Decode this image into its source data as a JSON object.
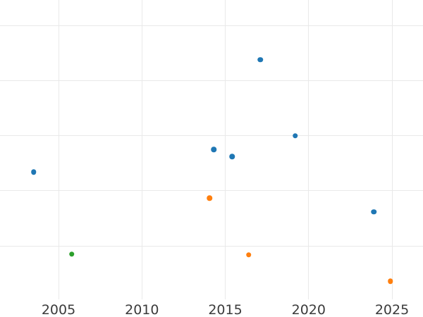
{
  "chart_data": {
    "type": "scatter",
    "title": "",
    "xlabel": "",
    "ylabel": "",
    "grid": true,
    "legend_position": "none",
    "x_tick_labels": [
      "2005",
      "2010",
      "2015",
      "2020",
      "2025"
    ],
    "x_ticks": [
      2005,
      2010,
      2015,
      2020,
      2025
    ],
    "xlim": [
      2001.49,
      2026.86
    ],
    "ylim": [
      0.03,
      5.46
    ],
    "y_gridline_values": [
      1,
      2,
      3,
      4,
      5
    ],
    "y_tick_labels": [],
    "series": [
      {
        "name": "blue-series",
        "color": "#1f77b4",
        "points": [
          {
            "x": 2003.5,
            "y": 2.34
          },
          {
            "x": 2014.3,
            "y": 2.75
          },
          {
            "x": 2015.4,
            "y": 2.62
          },
          {
            "x": 2017.1,
            "y": 4.38
          },
          {
            "x": 2019.2,
            "y": 3.0
          },
          {
            "x": 2023.9,
            "y": 1.62
          }
        ]
      },
      {
        "name": "orange-series",
        "color": "#ff7f0e",
        "points": [
          {
            "x": 2014.05,
            "y": 1.87
          },
          {
            "x": 2016.4,
            "y": 0.84
          },
          {
            "x": 2024.9,
            "y": 0.36
          }
        ]
      },
      {
        "name": "green-series",
        "color": "#2ca02c",
        "points": [
          {
            "x": 2005.8,
            "y": 0.85
          }
        ]
      }
    ],
    "marker_diameter_px": 7.5,
    "colors": {
      "background": "#ffffff",
      "gridline": "#e9e9e9",
      "tick_label": "#3b3b3b"
    }
  }
}
